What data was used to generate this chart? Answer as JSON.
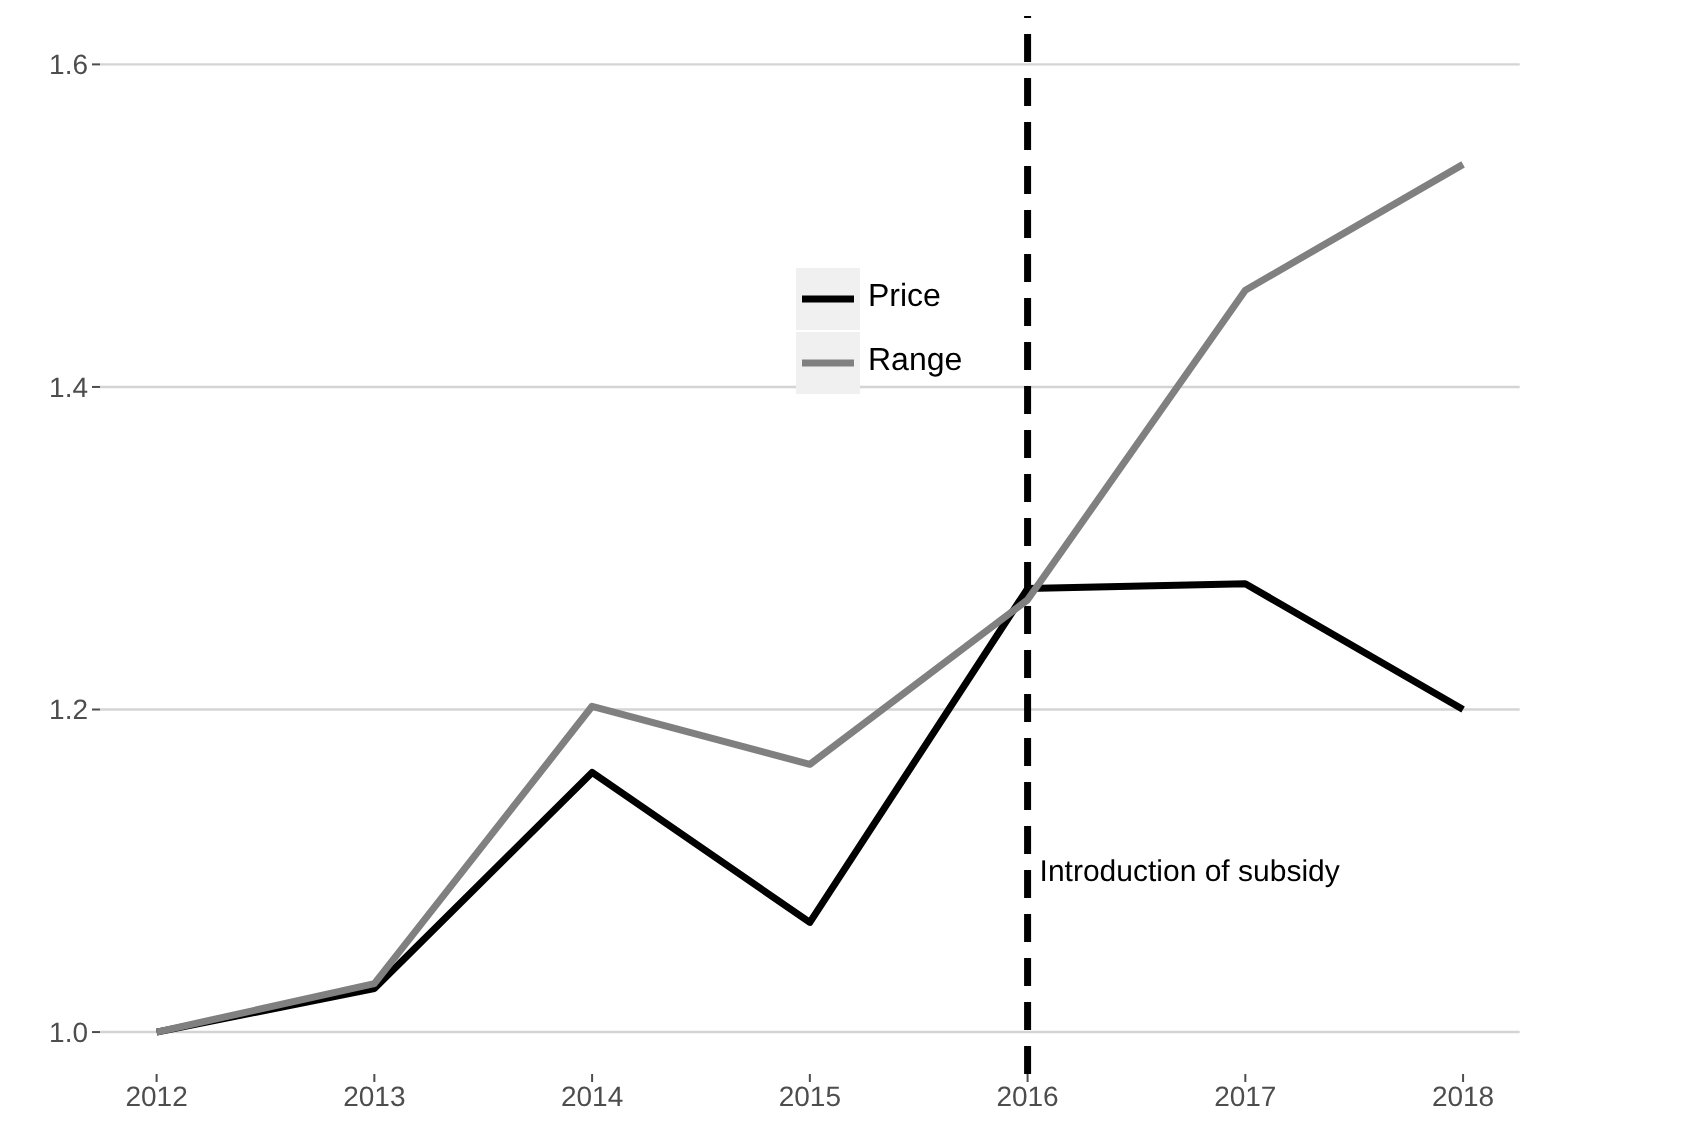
{
  "chart_data": {
    "type": "line",
    "x": [
      2012,
      2013,
      2014,
      2015,
      2016,
      2017,
      2018
    ],
    "series": [
      {
        "name": "Price",
        "color": "#000000",
        "values": [
          1.0,
          1.027,
          1.161,
          1.068,
          1.275,
          1.278,
          1.2
        ]
      },
      {
        "name": "Range",
        "color": "#808080",
        "values": [
          1.0,
          1.03,
          1.202,
          1.166,
          1.268,
          1.46,
          1.538
        ]
      }
    ],
    "xlim": [
      2011.74,
      2018.26
    ],
    "xticks": [
      2012,
      2013,
      2014,
      2015,
      2016,
      2017,
      2018
    ],
    "ylim": [
      0.974,
      1.63
    ],
    "yticks": [
      {
        "value": 1,
        "label": "1.0"
      },
      1.2,
      1.4,
      1.6
    ],
    "grid": "y",
    "legend": "top",
    "line_style": "solid",
    "marker": "none",
    "ref_lines": [
      {
        "axis": "x",
        "value": 2016,
        "color": "#000000",
        "line_style": "dashed"
      }
    ],
    "annotations": [
      {
        "text": "Introduction of subsidy",
        "x": 2016,
        "y": 1.1
      }
    ]
  }
}
